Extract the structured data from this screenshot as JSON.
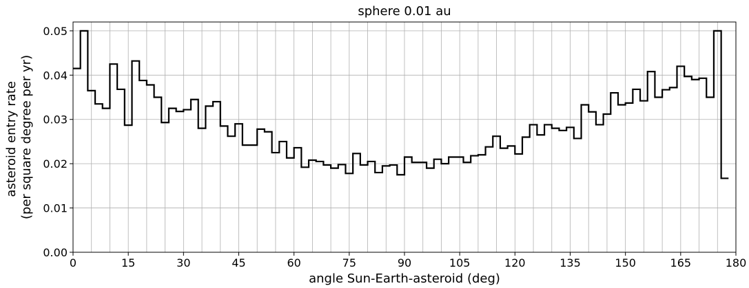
{
  "chart_data": {
    "type": "line",
    "step": true,
    "title": "sphere 0.01 au",
    "xlabel": "angle Sun-Earth-asteroid (deg)",
    "ylabel_lines": [
      "asteroid entry rate",
      "(per square degree per yr)"
    ],
    "xlim": [
      0,
      180
    ],
    "ylim": [
      0.0,
      0.052
    ],
    "x_ticks": [
      0,
      15,
      30,
      45,
      60,
      75,
      90,
      105,
      120,
      135,
      150,
      165,
      180
    ],
    "y_ticks": [
      0.0,
      0.01,
      0.02,
      0.03,
      0.04,
      0.05
    ],
    "y_tick_labels": [
      "0.00",
      "0.01",
      "0.02",
      "0.03",
      "0.04",
      "0.05"
    ],
    "x_grid_step": 5,
    "grid": true,
    "line_color": "#000000",
    "bin_width": 2,
    "bin_start": 0,
    "values": [
      0.0415,
      0.05,
      0.0365,
      0.0335,
      0.0325,
      0.0425,
      0.0368,
      0.0287,
      0.0432,
      0.0388,
      0.0378,
      0.035,
      0.0293,
      0.0325,
      0.0318,
      0.0322,
      0.0345,
      0.028,
      0.033,
      0.034,
      0.0285,
      0.0262,
      0.029,
      0.0242,
      0.0242,
      0.0278,
      0.0272,
      0.0225,
      0.025,
      0.0213,
      0.0236,
      0.0192,
      0.0208,
      0.0205,
      0.0197,
      0.019,
      0.0198,
      0.0178,
      0.0223,
      0.0197,
      0.0205,
      0.018,
      0.0195,
      0.0197,
      0.0175,
      0.0215,
      0.0203,
      0.0203,
      0.019,
      0.021,
      0.02,
      0.0215,
      0.0215,
      0.0203,
      0.0218,
      0.022,
      0.0238,
      0.0262,
      0.0235,
      0.024,
      0.0222,
      0.026,
      0.0288,
      0.0265,
      0.0288,
      0.028,
      0.0275,
      0.0282,
      0.0257,
      0.0333,
      0.0317,
      0.0288,
      0.0312,
      0.036,
      0.0333,
      0.0337,
      0.0368,
      0.0342,
      0.0408,
      0.035,
      0.0367,
      0.0372,
      0.042,
      0.0397,
      0.039,
      0.0393,
      0.035,
      0.05,
      0.0167
    ]
  }
}
